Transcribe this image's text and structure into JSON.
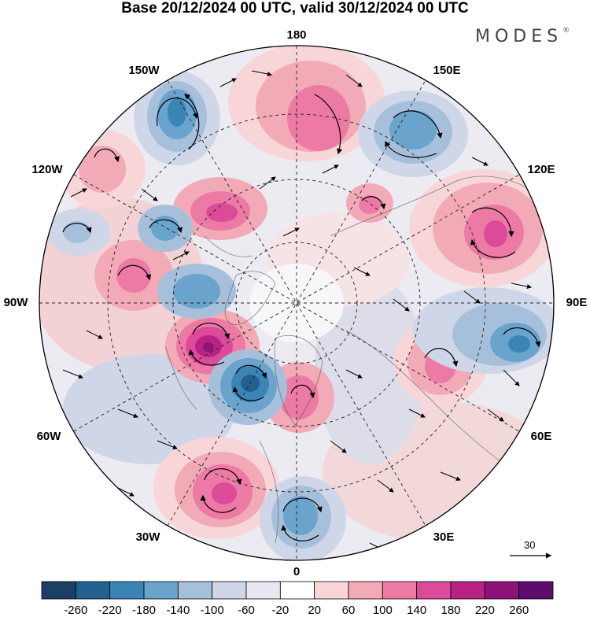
{
  "title": "Base 20/12/2024 00 UTC, valid 30/12/2024 00 UTC",
  "brand": {
    "text": "MODES",
    "mark": "®"
  },
  "map": {
    "projection": "north-polar-stereographic",
    "longitude_labels": {
      "top": "180",
      "top_right": "150E",
      "right_upper": "120E",
      "right": "90E",
      "right_lower": "60E",
      "bottom_right": "30E",
      "bottom": "0",
      "bottom_left": "30W",
      "left_lower": "60W",
      "left": "90W",
      "left_upper": "120W",
      "top_left": "150W"
    },
    "reference_vector": {
      "label": "30"
    }
  },
  "colorbar": {
    "ticks": [
      "-260",
      "-220",
      "-180",
      "-140",
      "-100",
      "-60",
      "-20",
      "20",
      "60",
      "100",
      "140",
      "180",
      "220",
      "260"
    ],
    "colors": [
      "#1c3f66",
      "#22608f",
      "#3a84b6",
      "#6aa3cb",
      "#a6c0dc",
      "#cfd6e8",
      "#e9e8f2",
      "#ffffff",
      "#f8d6d8",
      "#f2aab7",
      "#ec7aa5",
      "#dc4a9a",
      "#b82383",
      "#8e1379",
      "#5e0c6e"
    ]
  }
}
